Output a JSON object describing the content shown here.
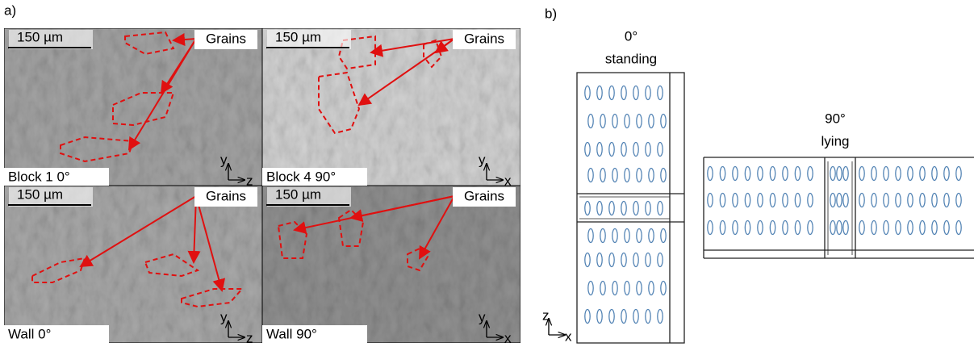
{
  "figure": {
    "part_a": {
      "label": "a)",
      "panels": [
        {
          "scale_bar": "150 µm",
          "annotation": "Grains",
          "caption": "Block 1 0°",
          "axes": [
            "y",
            "z"
          ]
        },
        {
          "scale_bar": "150 µm",
          "annotation": "Grains",
          "caption": "Block 4 90°",
          "axes": [
            "y",
            "x"
          ]
        },
        {
          "scale_bar": "150 µm",
          "annotation": "Grains",
          "caption": "Wall 0°",
          "axes": [
            "y",
            "z"
          ]
        },
        {
          "scale_bar": "150 µm",
          "annotation": "Grains",
          "caption": "Wall 90°",
          "axes": [
            "y",
            "x"
          ]
        }
      ]
    },
    "part_b": {
      "label": "b)",
      "standing": {
        "angle": "0°",
        "orientation": "standing"
      },
      "lying": {
        "angle": "90°",
        "orientation": "lying"
      },
      "axes": [
        "z",
        "x"
      ]
    }
  }
}
